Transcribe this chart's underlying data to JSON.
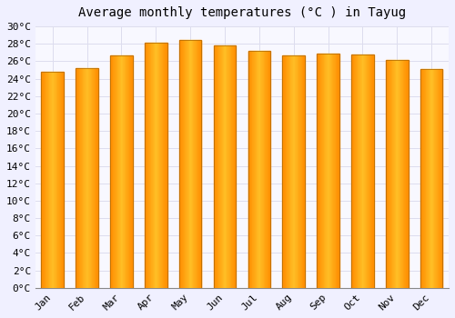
{
  "title": "Average monthly temperatures (°C ) in Tayug",
  "months": [
    "Jan",
    "Feb",
    "Mar",
    "Apr",
    "May",
    "Jun",
    "Jul",
    "Aug",
    "Sep",
    "Oct",
    "Nov",
    "Dec"
  ],
  "values": [
    24.8,
    25.2,
    26.7,
    28.1,
    28.4,
    27.8,
    27.2,
    26.7,
    26.9,
    26.8,
    26.1,
    25.1
  ],
  "bar_color": "#FFA500",
  "bar_edge_color": "#CC8800",
  "background_color": "#F0F0FF",
  "plot_bg_color": "#F8F8FF",
  "grid_color": "#DDDDEE",
  "ylim": [
    0,
    30
  ],
  "ytick_step": 2,
  "title_fontsize": 10,
  "tick_fontsize": 8,
  "font_family": "monospace"
}
